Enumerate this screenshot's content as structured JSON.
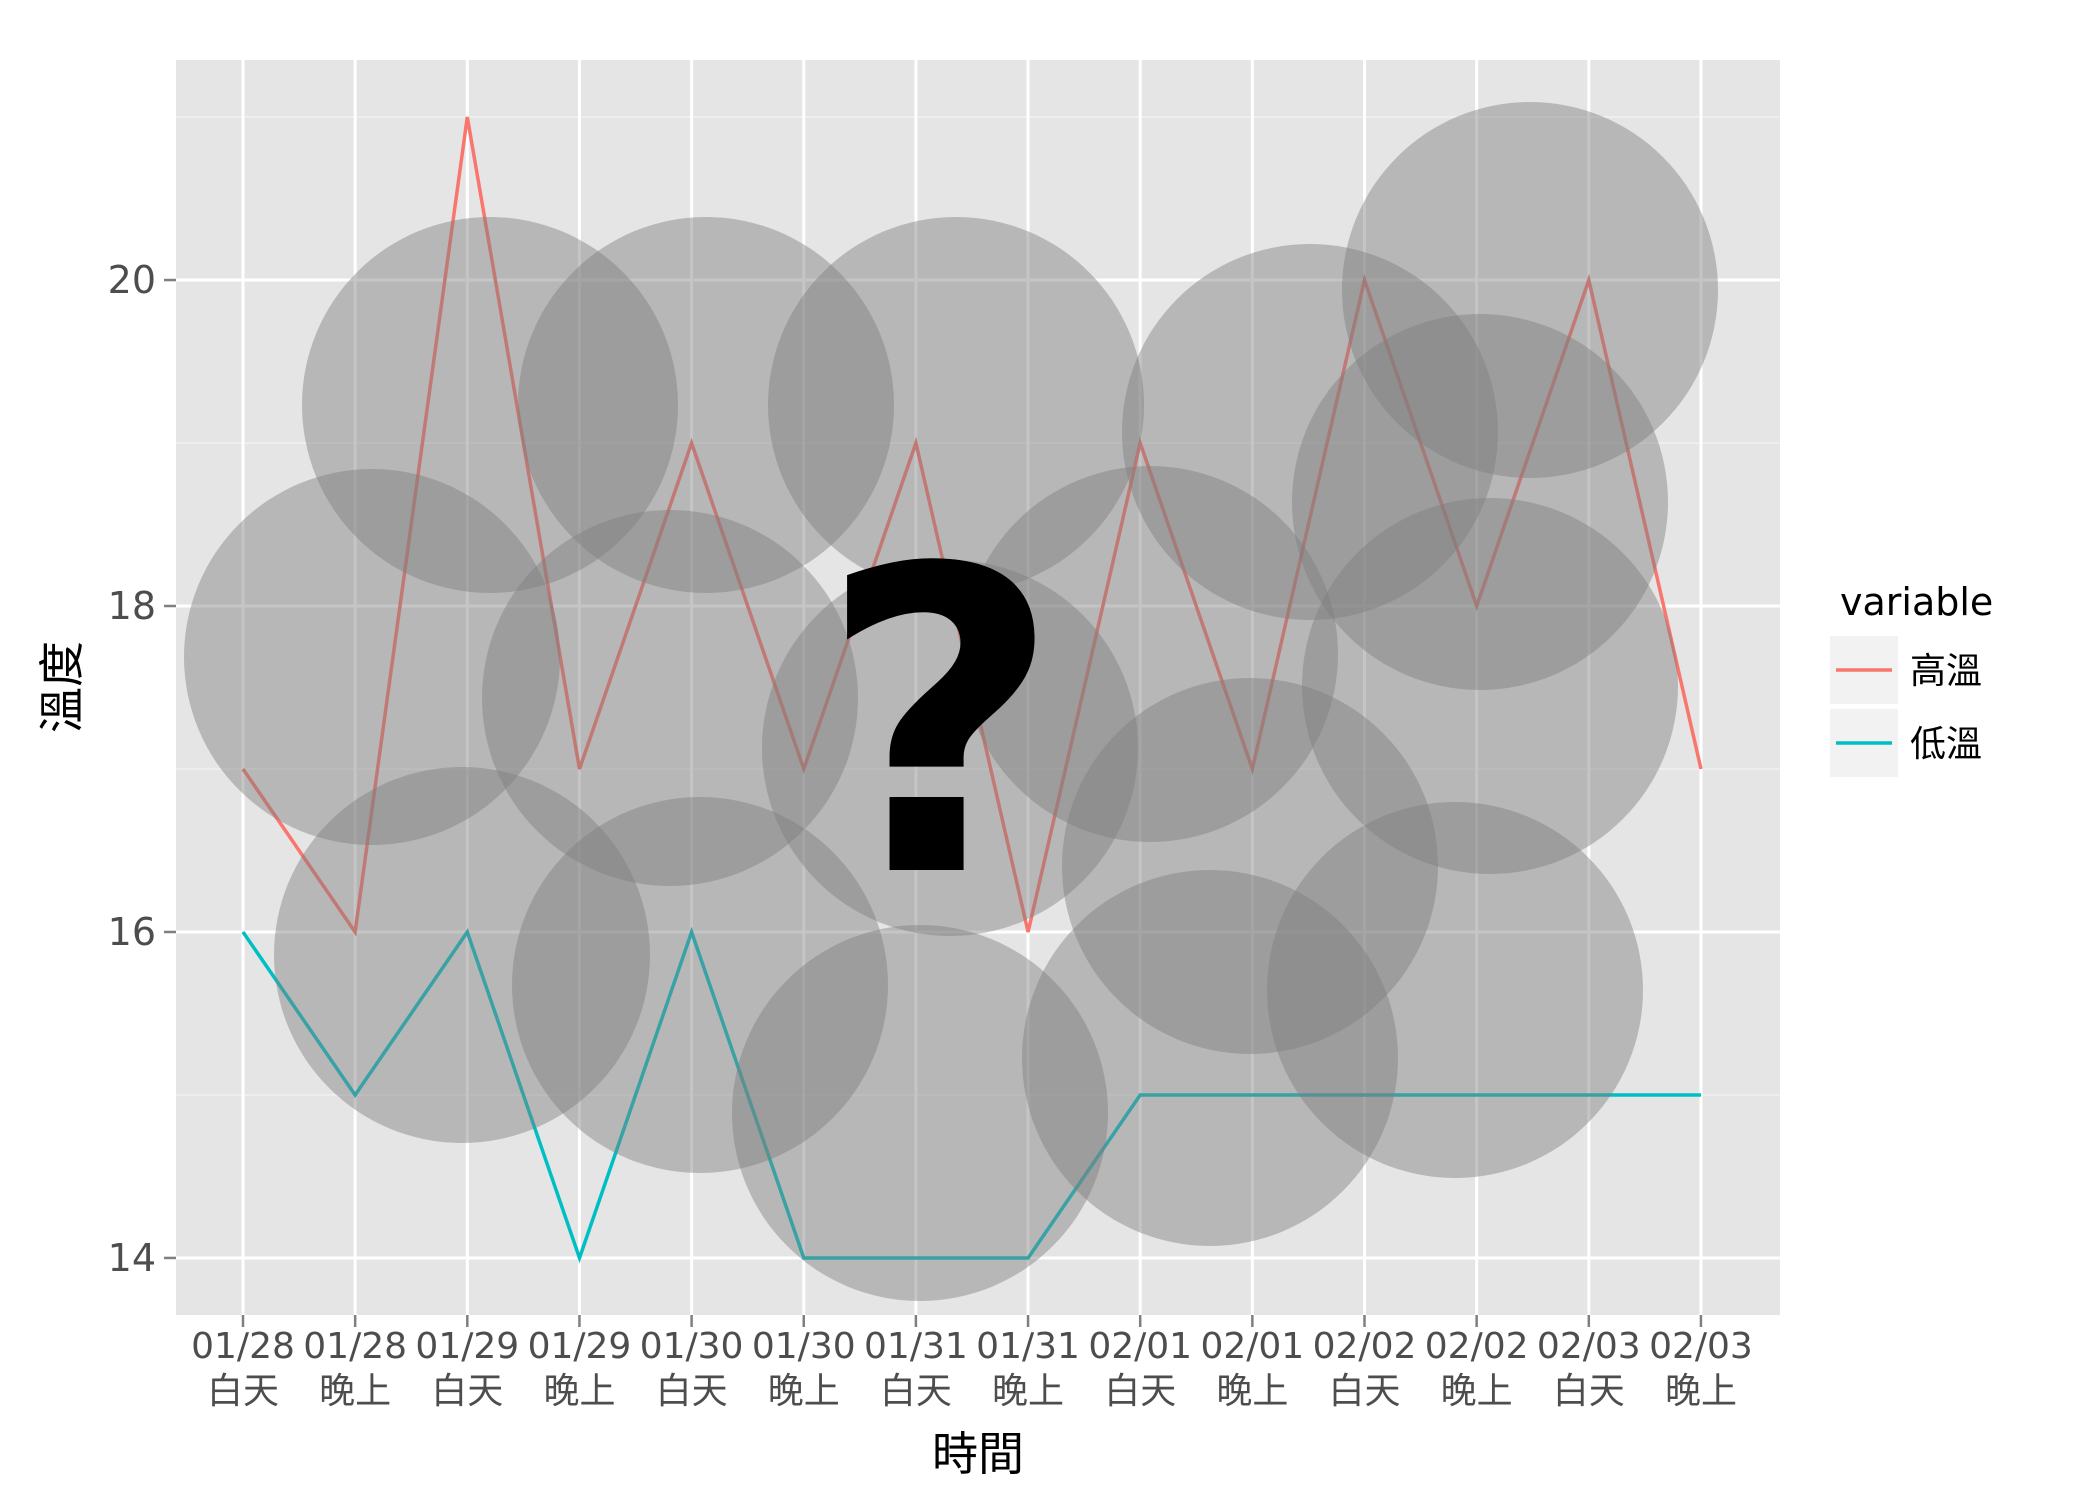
{
  "chart_data": {
    "type": "line",
    "categories": [
      [
        "01/28",
        "白天"
      ],
      [
        "01/28",
        "晚上"
      ],
      [
        "01/29",
        "白天"
      ],
      [
        "01/29",
        "晚上"
      ],
      [
        "01/30",
        "白天"
      ],
      [
        "01/30",
        "晚上"
      ],
      [
        "01/31",
        "白天"
      ],
      [
        "01/31",
        "晚上"
      ],
      [
        "02/01",
        "白天"
      ],
      [
        "02/01",
        "晚上"
      ],
      [
        "02/02",
        "白天"
      ],
      [
        "02/02",
        "晚上"
      ],
      [
        "02/03",
        "白天"
      ],
      [
        "02/03",
        "晚上"
      ]
    ],
    "series": [
      {
        "name": "高溫",
        "color": "#F8766D",
        "values": [
          17,
          16,
          21,
          17,
          19,
          17,
          19,
          16,
          19,
          17,
          20,
          18,
          20,
          17
        ]
      },
      {
        "name": "低溫",
        "color": "#00BFC4",
        "values": [
          16,
          15,
          16,
          14,
          16,
          14,
          14,
          14,
          15,
          15,
          15,
          15,
          15,
          15
        ]
      }
    ],
    "xlabel": "時間",
    "ylabel": "溫度",
    "ylim": [
      13.65,
      21.35
    ],
    "yticks": [
      14,
      16,
      18,
      20
    ],
    "grid": true,
    "background": "#E5E5E5",
    "legend": {
      "title": "variable",
      "position": "right"
    },
    "overlay_glyph": "?"
  }
}
